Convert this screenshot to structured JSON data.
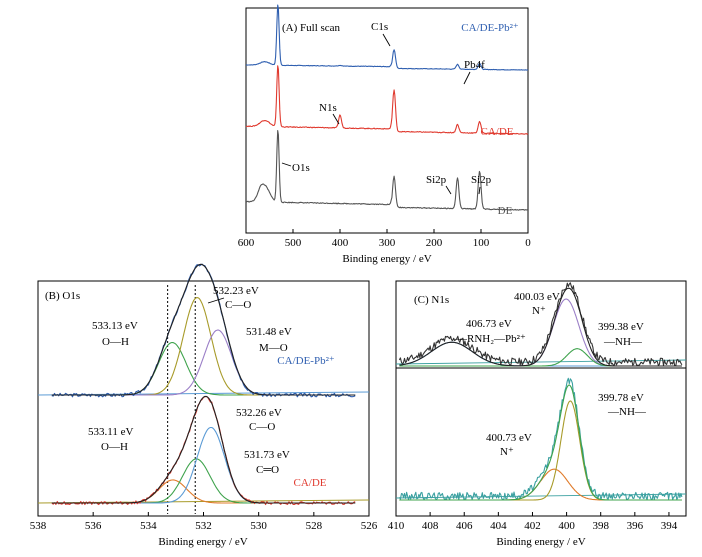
{
  "colors": {
    "blue": "#2f5fb0",
    "red": "#e03a2f",
    "gray": "#555555",
    "black": "#222222",
    "green": "#3fa34d",
    "olive": "#a89b2a",
    "purple": "#9b7fc7",
    "lightblue": "#5b9bd5",
    "orange": "#e07b2a",
    "teal": "#3aa0a0",
    "brown": "#b08a3a"
  },
  "chart_data": [
    {
      "type": "line",
      "panel": "A",
      "title": "(A) Full scan",
      "xlabel": "Binding energy / eV",
      "ylabel": "",
      "xlim": [
        600,
        0
      ],
      "x_ticks": [
        600,
        500,
        400,
        300,
        200,
        100,
        0
      ],
      "x_reversed": true,
      "series": [
        {
          "name": "CA/DE-Pb²⁺",
          "color": "blue",
          "offset": 2.0
        },
        {
          "name": "CA/DE",
          "color": "red",
          "offset": 1.0
        },
        {
          "name": "DE",
          "color": "gray",
          "offset": 0.0
        }
      ],
      "annotations": [
        {
          "label": "C1s"
        },
        {
          "label": "Pb4f"
        },
        {
          "label": "N1s"
        },
        {
          "label": "O1s"
        },
        {
          "label": "Si2p"
        },
        {
          "label": "Si2p"
        }
      ]
    },
    {
      "type": "line",
      "panel": "B",
      "title": "(B) O1s",
      "xlabel": "Binding energy / eV",
      "xlim": [
        538,
        526
      ],
      "x_ticks": [
        538,
        536,
        534,
        532,
        530,
        528,
        526
      ],
      "x_reversed": true,
      "reference_lines_eV": [
        533.3,
        532.3
      ],
      "series": [
        {
          "name": "CA/DE-Pb²⁺",
          "color": "blue",
          "peaks": [
            {
              "center": 533.13,
              "label": "533.13 eV",
              "bond": "O—H",
              "color": "green",
              "height": 0.42
            },
            {
              "center": 532.23,
              "label": "532.23 eV",
              "bond": "C—O",
              "color": "olive",
              "height": 0.78
            },
            {
              "center": 531.48,
              "label": "531.48 eV",
              "bond": "M—O",
              "color": "purple",
              "height": 0.52
            }
          ]
        },
        {
          "name": "CA/DE",
          "color": "red",
          "peaks": [
            {
              "center": 533.11,
              "label": "533.11 eV",
              "bond": "O—H",
              "color": "orange",
              "height": 0.22
            },
            {
              "center": 532.26,
              "label": "532.26 eV",
              "bond": "C—O",
              "color": "green",
              "height": 0.42
            },
            {
              "center": 531.73,
              "label": "531.73 eV",
              "bond": "C═O",
              "color": "lightblue",
              "height": 0.72
            }
          ]
        }
      ]
    },
    {
      "type": "line",
      "panel": "C",
      "title": "(C) N1s",
      "xlabel": "Binding energy / eV",
      "xlim": [
        410,
        393
      ],
      "x_ticks": [
        410,
        408,
        406,
        404,
        402,
        400,
        398,
        396,
        394
      ],
      "x_reversed": true,
      "series": [
        {
          "name": "CA/DE-Pb²⁺",
          "peaks": [
            {
              "center": 406.73,
              "label": "406.73 eV",
              "bond": "—RNH₂—Pb²⁺",
              "color": "lightblue",
              "height": 0.22
            },
            {
              "center": 400.03,
              "label": "400.03 eV",
              "bond": "N⁺",
              "color": "purple",
              "height": 0.62
            },
            {
              "center": 399.38,
              "label": "399.38 eV",
              "bond": "—NH—",
              "color": "green",
              "height": 0.16
            }
          ]
        },
        {
          "name": "CA/DE",
          "peaks": [
            {
              "center": 400.73,
              "label": "400.73 eV",
              "bond": "N⁺",
              "color": "orange",
              "height": 0.28
            },
            {
              "center": 399.78,
              "label": "399.78 eV",
              "bond": "—NH—",
              "color": "olive",
              "height": 0.9
            }
          ]
        }
      ]
    }
  ]
}
